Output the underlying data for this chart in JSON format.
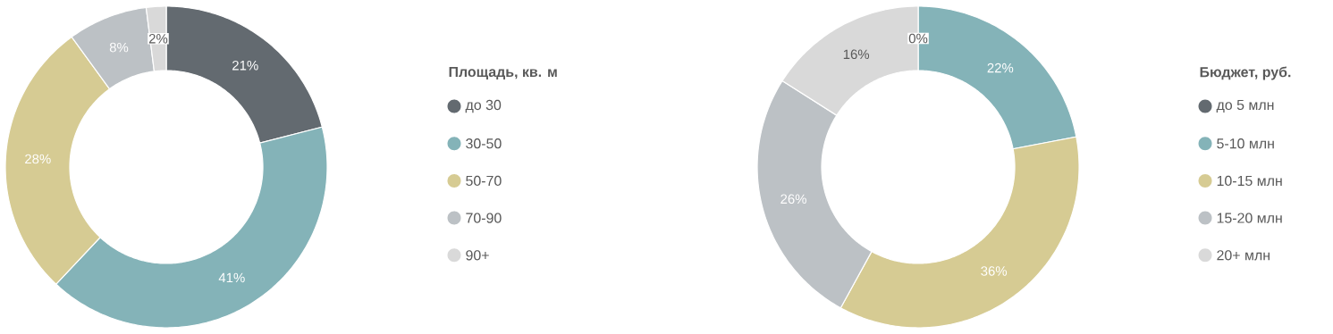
{
  "chart_data": [
    {
      "type": "donut",
      "legend_title": "Площадь, кв. м",
      "legend": "right",
      "categories": [
        "до 30",
        "30-50",
        "50-70",
        "70-90",
        "90+"
      ],
      "values": [
        21,
        41,
        28,
        8,
        2
      ],
      "value_labels": [
        "21%",
        "41%",
        "28%",
        "8%",
        "2%"
      ],
      "colors": [
        "#636a70",
        "#84b3b8",
        "#d6cb93",
        "#bcc1c5",
        "#d9d9d9"
      ]
    },
    {
      "type": "donut",
      "legend_title": "Бюджет, руб.",
      "legend": "right",
      "categories": [
        "до 5 млн",
        "5-10 млн",
        "10-15 млн",
        "15-20 млн",
        "20+ млн"
      ],
      "values": [
        0,
        22,
        36,
        26,
        16
      ],
      "value_labels": [
        "0%",
        "22%",
        "36%",
        "26%",
        "16%"
      ],
      "colors": [
        "#636a70",
        "#84b3b8",
        "#d6cb93",
        "#bcc1c5",
        "#d9d9d9"
      ]
    }
  ]
}
